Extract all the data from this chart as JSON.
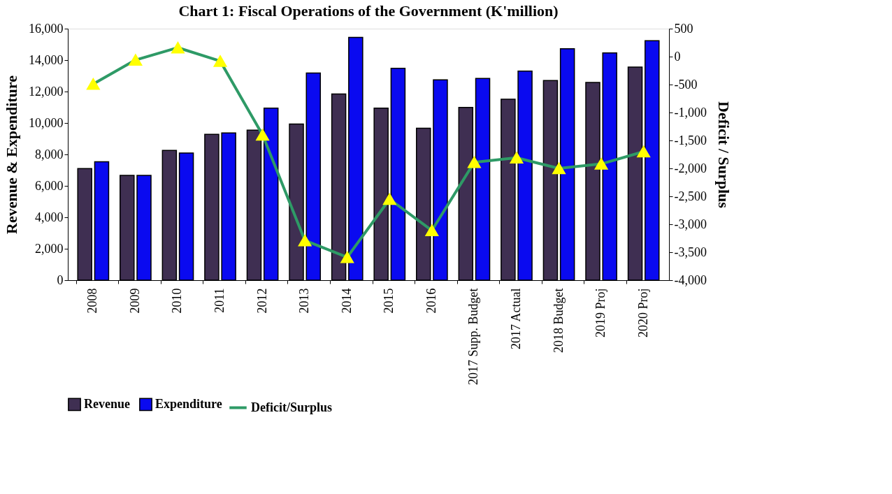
{
  "chart_data": {
    "type": "bar",
    "title": "Chart 1: Fiscal Operations of the Government (K'million)",
    "ylabel": "Revenue & Expenditure",
    "y2label": "Deficit / Surplus",
    "categories": [
      "2008",
      "2009",
      "2010",
      "2011",
      "2012",
      "2013",
      "2014",
      "2015",
      "2016",
      "2017 Supp. Budget",
      "2017 Actual",
      "2018 Budget",
      "2019 Proj",
      "2020 Proj"
    ],
    "series": [
      {
        "name": "Revenue",
        "color": "#3f2f52",
        "values": [
          7100,
          6670,
          8260,
          9280,
          9540,
          9930,
          11850,
          10950,
          9670,
          10990,
          11510,
          12700,
          12580,
          13560
        ]
      },
      {
        "name": "Expenditure",
        "color": "#0a0af0",
        "values": [
          7530,
          6670,
          8090,
          9370,
          10950,
          13180,
          15440,
          13480,
          12750,
          12830,
          13300,
          14720,
          14460,
          15230
        ]
      },
      {
        "name": "Deficit/Surplus",
        "type": "line",
        "axis": "y2",
        "color": "#2e9a66",
        "marker": "triangle",
        "values": [
          -490,
          -60,
          160,
          -80,
          -1400,
          -3290,
          -3590,
          -2550,
          -3110,
          -1890,
          -1810,
          -2000,
          -1920,
          -1700
        ]
      }
    ],
    "ylim": [
      0,
      16000
    ],
    "yticks": [
      0,
      {
        "value": 2000,
        "label": "2,000"
      },
      {
        "value": 4000,
        "label": "4,000"
      },
      {
        "value": 6000,
        "label": "6,000"
      },
      {
        "value": 8000,
        "label": "8,000"
      },
      {
        "value": 10000,
        "label": "10,000"
      },
      {
        "value": 12000,
        "label": "12,000"
      },
      {
        "value": 14000,
        "label": "14,000"
      },
      {
        "value": 16000,
        "label": "16,000"
      }
    ],
    "y2lim": [
      -4000,
      500
    ],
    "y2ticks": [
      {
        "value": -4000,
        "label": "-4,000"
      },
      {
        "value": -3500,
        "label": "-3,500"
      },
      {
        "value": -3000,
        "label": "-3,000"
      },
      {
        "value": -2500,
        "label": "-2,500"
      },
      {
        "value": -2000,
        "label": "-2,000"
      },
      {
        "value": -1500,
        "label": "-1,500"
      },
      {
        "value": -1000,
        "label": "-1,000"
      },
      {
        "value": -500,
        "label": "-500"
      },
      0,
      500
    ],
    "grid": false,
    "legend": "bottom"
  }
}
